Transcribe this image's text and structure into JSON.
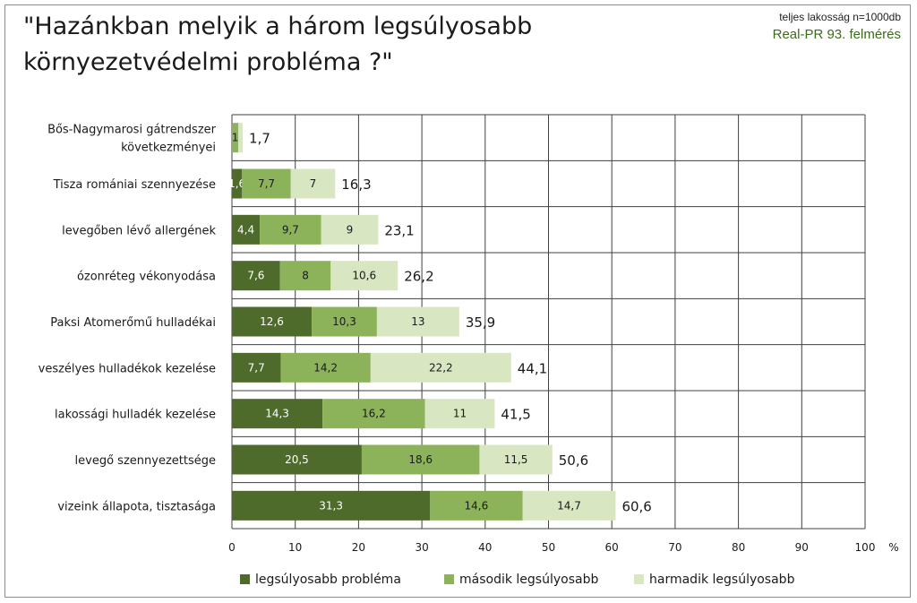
{
  "header": {
    "title_line1": "\"Hazánkban melyik a három legsúlyosabb",
    "title_line2": "környezetvédelmi probléma ?\"",
    "subtitle": "teljes lakosság n=1000db",
    "source": "Real-PR 93. felmérés"
  },
  "colors": {
    "first": "#4e6b2c",
    "second": "#8db35a",
    "third": "#d8e6c2",
    "grid": "#404040"
  },
  "chart_data": {
    "type": "bar",
    "orientation": "horizontal",
    "stacked": true,
    "title": "\"Hazánkban melyik a három legsúlyosabb környezetvédelmi probléma ?\"",
    "categories": [
      [
        "Bős-Nagymarosi gátrendszer",
        "következményei"
      ],
      [
        "Tisza romániai szennyezése"
      ],
      [
        "levegőben lévő allergének"
      ],
      [
        "ózonréteg vékonyodása"
      ],
      [
        "Paksi Atomerőmű hulladékai"
      ],
      [
        "veszélyes hulladékok kezelése"
      ],
      [
        "lakossági hulladék kezelése"
      ],
      [
        "levegő szennyezettsége"
      ],
      [
        "vizeink állapota, tisztasága"
      ]
    ],
    "series": [
      {
        "name": "legsúlyosabb probléma",
        "color": "#4e6b2c",
        "label_color": "#ffffff",
        "values": [
          0,
          1.6,
          4.4,
          7.6,
          12.6,
          7.7,
          14.3,
          20.5,
          31.3
        ],
        "labels": [
          "",
          "1,6",
          "4,4",
          "7,6",
          "12,6",
          "7,7",
          "14,3",
          "20,5",
          "31,3"
        ]
      },
      {
        "name": "második legsúlyosabb",
        "color": "#8db35a",
        "label_color": "#1a1a1a",
        "values": [
          1,
          7.7,
          9.7,
          8,
          10.3,
          14.2,
          16.2,
          18.6,
          14.6
        ],
        "labels": [
          "1",
          "7,7",
          "9,7",
          "8",
          "10,3",
          "14,2",
          "16,2",
          "18,6",
          "14,6"
        ]
      },
      {
        "name": "harmadik legsúlyosabb",
        "color": "#d8e6c2",
        "label_color": "#1a1a1a",
        "values": [
          0.7,
          7,
          9,
          10.6,
          13,
          22.2,
          11,
          11.5,
          14.7
        ],
        "labels": [
          "",
          "7",
          "9",
          "10,6",
          "13",
          "22,2",
          "11",
          "11,5",
          "14,7"
        ]
      }
    ],
    "totals": [
      "1,7",
      "16,3",
      "23,1",
      "26,2",
      "35,9",
      "44,1",
      "41,5",
      "50,6",
      "60,6"
    ],
    "xlim": [
      0,
      100
    ],
    "xticks": [
      "0",
      "10",
      "20",
      "30",
      "40",
      "50",
      "60",
      "70",
      "80",
      "90",
      "100"
    ],
    "xunit": "%",
    "grid": true,
    "legend_position": "bottom"
  }
}
